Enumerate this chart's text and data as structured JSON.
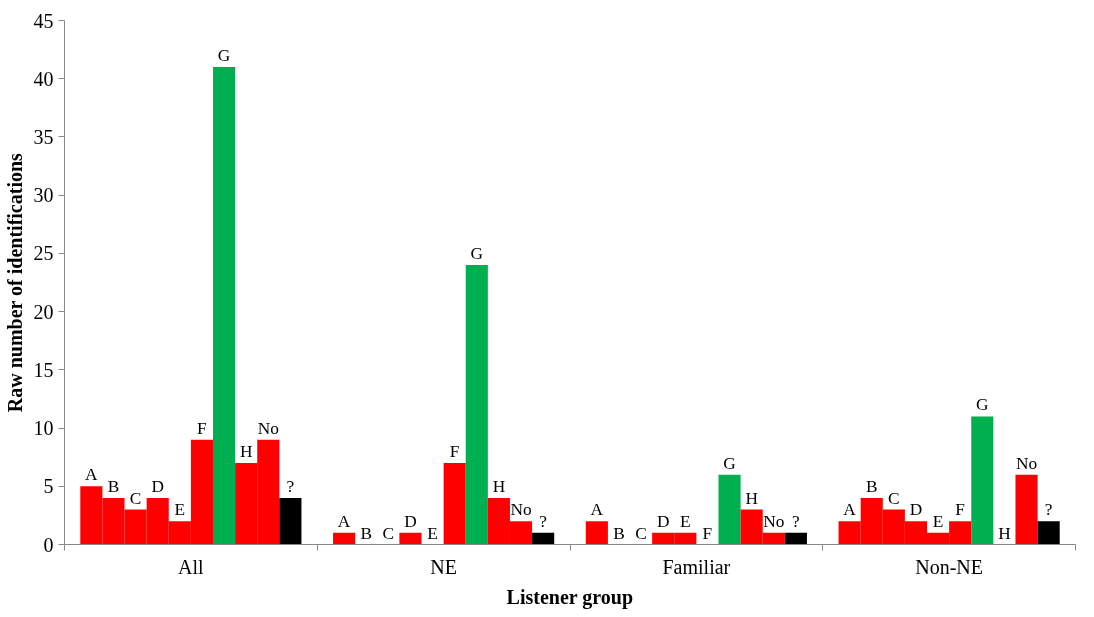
{
  "chart_data": {
    "type": "bar",
    "xlabel": "Listener group",
    "ylabel": "Raw number of identifications",
    "categories": [
      "All",
      "NE",
      "Familiar",
      "Non-NE"
    ],
    "series": [
      {
        "name": "A",
        "color": "#ff0000",
        "values": [
          5,
          1,
          2,
          2
        ]
      },
      {
        "name": "B",
        "color": "#ff0000",
        "values": [
          4,
          0,
          0,
          4
        ]
      },
      {
        "name": "C",
        "color": "#ff0000",
        "values": [
          3,
          0,
          0,
          3
        ]
      },
      {
        "name": "D",
        "color": "#ff0000",
        "values": [
          4,
          1,
          1,
          2
        ]
      },
      {
        "name": "E",
        "color": "#ff0000",
        "values": [
          2,
          0,
          1,
          1
        ]
      },
      {
        "name": "F",
        "color": "#ff0000",
        "values": [
          9,
          7,
          0,
          2
        ]
      },
      {
        "name": "G",
        "color": "#00b050",
        "values": [
          41,
          24,
          6,
          11
        ]
      },
      {
        "name": "H",
        "color": "#ff0000",
        "values": [
          7,
          4,
          3,
          0
        ]
      },
      {
        "name": "No",
        "color": "#ff0000",
        "values": [
          9,
          2,
          1,
          6
        ]
      },
      {
        "name": "?",
        "color": "#000000",
        "values": [
          4,
          1,
          1,
          2
        ]
      }
    ],
    "ylim": [
      0,
      45
    ],
    "yticks": [
      0,
      5,
      10,
      15,
      20,
      25,
      30,
      35,
      40,
      45
    ],
    "grid": false
  }
}
